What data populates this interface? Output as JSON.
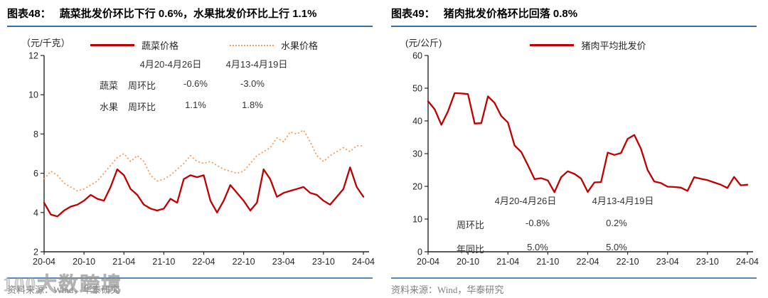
{
  "colors": {
    "accent_blue": "#3D6E9E",
    "footer_blue": "#5B87B5",
    "vegetable_line_red": "#C00000",
    "fruit_line_orange": "#EE9D5C",
    "pork_line_red": "#C00000",
    "axis_text": "#262626",
    "source_text_gray": "#7F7F7F",
    "watermark_gray": "#ACACAC"
  },
  "watermark": {
    "text": "100大数跨境"
  },
  "chart_data": [
    {
      "type": "line",
      "figure_label": "图表48：",
      "title": "蔬菜批发价环比下行 0.6%，水果批发价环比上行 1.1%",
      "unit_label": "（元/千克）",
      "x_tick_labels": [
        "20-04",
        "20-10",
        "21-04",
        "21-10",
        "22-04",
        "22-10",
        "23-04",
        "23-10",
        "24-04"
      ],
      "ylim": [
        2,
        12
      ],
      "yticks": [
        2,
        4,
        6,
        8,
        10,
        12
      ],
      "grid": "off",
      "legend_position": "top",
      "series": [
        {
          "name": "蔬菜价格",
          "style": "solid",
          "color": "#C00000",
          "values": [
            4.5,
            3.9,
            3.8,
            4.1,
            4.3,
            4.4,
            4.6,
            4.9,
            4.7,
            4.6,
            5.3,
            6.2,
            5.9,
            5.2,
            4.9,
            4.4,
            4.2,
            4.1,
            4.2,
            4.7,
            4.5,
            5.7,
            5.9,
            5.8,
            5.9,
            4.6,
            4.0,
            4.6,
            5.4,
            5.0,
            4.6,
            4.1,
            4.5,
            6.2,
            5.7,
            4.8,
            5.0,
            5.1,
            5.2,
            5.3,
            5.0,
            4.9,
            4.6,
            4.4,
            4.8,
            5.2,
            6.3,
            5.3,
            4.8
          ]
        },
        {
          "name": "水果价格",
          "style": "dotted",
          "color": "#EE9D5C",
          "values": [
            5.7,
            6.1,
            5.9,
            5.5,
            5.3,
            5.1,
            5.2,
            5.4,
            5.6,
            6.0,
            6.4,
            6.8,
            7.0,
            6.6,
            6.9,
            6.6,
            5.9,
            5.6,
            5.7,
            5.9,
            6.2,
            6.5,
            6.9,
            6.6,
            6.5,
            6.6,
            6.4,
            6.2,
            6.1,
            6.0,
            6.1,
            6.5,
            6.9,
            7.1,
            7.3,
            7.8,
            7.6,
            8.1,
            8.0,
            8.2,
            7.6,
            6.9,
            6.6,
            6.9,
            7.1,
            7.3,
            7.1,
            7.4,
            7.4
          ]
        }
      ],
      "annotation_table": {
        "col_headers": [
          "4月20-4月26日",
          "4月13-4月19日"
        ],
        "rows": [
          [
            "蔬菜",
            "周环比",
            "-0.6%",
            "-3.0%"
          ],
          [
            "水果",
            "周环比",
            "1.1%",
            "1.8%"
          ]
        ]
      },
      "source": "资料来源：Wind，华泰研究"
    },
    {
      "type": "line",
      "figure_label": "图表49：",
      "title": "猪肉批发价格环比回落 0.8%",
      "unit_label": "(元/公斤)",
      "x_tick_labels": [
        "20-04",
        "20-10",
        "21-04",
        "21-10",
        "22-04",
        "22-10",
        "23-04",
        "23-10",
        "24-04"
      ],
      "ylim": [
        0,
        60
      ],
      "yticks": [
        0,
        10,
        20,
        30,
        40,
        50,
        60
      ],
      "grid": "off",
      "legend_position": "top",
      "series": [
        {
          "name": "猪肉平均批发价",
          "style": "solid",
          "color": "#C00000",
          "values": [
            46,
            43.5,
            38.8,
            43,
            48.5,
            48.4,
            48.2,
            39.2,
            39.3,
            47.5,
            45.5,
            41.5,
            39.5,
            32.5,
            30.5,
            26.5,
            22.2,
            22.5,
            21.8,
            18.2,
            22.8,
            24.6,
            23.8,
            22.4,
            18.3,
            21.2,
            21.3,
            30.3,
            29.6,
            30.2,
            34.5,
            35.7,
            31.5,
            25.0,
            21.5,
            21.0,
            19.9,
            19.8,
            19.6,
            18.6,
            22.8,
            22.3,
            21.9,
            21.2,
            20.5,
            19.5,
            22.9,
            20.3,
            20.5
          ]
        }
      ],
      "annotation_table": {
        "col_headers": [
          "4月20-4月26日",
          "4月13-4月19日"
        ],
        "rows": [
          [
            "周环比",
            "-0.8%",
            "0.2%"
          ],
          [
            "年同比",
            "5.0%",
            "5.0%"
          ]
        ]
      },
      "source": "资料来源：Wind，华泰研究"
    }
  ]
}
